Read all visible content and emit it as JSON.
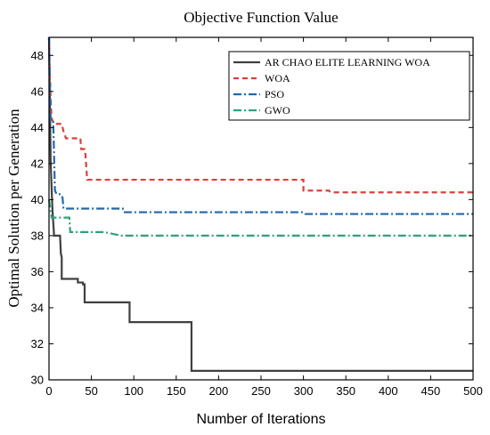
{
  "chart_data": {
    "type": "line",
    "title": "Objective Function Value",
    "xlabel": "Number of Iterations",
    "ylabel": "Optimal Solution per Generation",
    "xlim": [
      0,
      500
    ],
    "ylim": [
      30,
      49
    ],
    "xticks": [
      0,
      50,
      100,
      150,
      200,
      250,
      300,
      350,
      400,
      450,
      500
    ],
    "yticks": [
      30,
      32,
      34,
      36,
      38,
      40,
      42,
      44,
      46,
      48
    ],
    "grid": false,
    "legend_position": "top-right",
    "series": [
      {
        "name": "AR CHAO ELITE LEARNING WOA",
        "color": "#404040",
        "dash": "solid",
        "points": [
          [
            0,
            49
          ],
          [
            2,
            42
          ],
          [
            4,
            39.5
          ],
          [
            6,
            38
          ],
          [
            13,
            38
          ],
          [
            14,
            37
          ],
          [
            15,
            36.8
          ],
          [
            15,
            35.6
          ],
          [
            34,
            35.6
          ],
          [
            34,
            35.4
          ],
          [
            40,
            35.4
          ],
          [
            40,
            35.3
          ],
          [
            42,
            35.3
          ],
          [
            42,
            34.3
          ],
          [
            95,
            34.3
          ],
          [
            95,
            33.2
          ],
          [
            168,
            33.2
          ],
          [
            168,
            30.5
          ],
          [
            500,
            30.5
          ]
        ]
      },
      {
        "name": "WOA",
        "color": "#d9413a",
        "dash": "6,4",
        "points": [
          [
            0,
            49
          ],
          [
            1,
            47
          ],
          [
            2,
            45.5
          ],
          [
            3,
            44.5
          ],
          [
            6,
            44.2
          ],
          [
            15,
            44.2
          ],
          [
            17,
            43.8
          ],
          [
            20,
            43.4
          ],
          [
            37,
            43.4
          ],
          [
            38,
            42.8
          ],
          [
            42,
            42.8
          ],
          [
            43,
            42.5
          ],
          [
            45,
            41.1
          ],
          [
            300,
            41.1
          ],
          [
            300,
            40.5
          ],
          [
            330,
            40.5
          ],
          [
            332,
            40.4
          ],
          [
            500,
            40.4
          ]
        ]
      },
      {
        "name": "PSO",
        "color": "#2166ac",
        "dash": "9,3,2,3",
        "points": [
          [
            0,
            49
          ],
          [
            2,
            44.3
          ],
          [
            5,
            44.3
          ],
          [
            7,
            40.5
          ],
          [
            9,
            40.3
          ],
          [
            14,
            40.3
          ],
          [
            16,
            40.1
          ],
          [
            17,
            39.5
          ],
          [
            87,
            39.5
          ],
          [
            88,
            39.3
          ],
          [
            300,
            39.3
          ],
          [
            302,
            39.2
          ],
          [
            500,
            39.2
          ]
        ]
      },
      {
        "name": "GWO",
        "color": "#2ea27a",
        "dash": "9,3,2,3",
        "points": [
          [
            0,
            40
          ],
          [
            3,
            39
          ],
          [
            24,
            39
          ],
          [
            25,
            38.2
          ],
          [
            65,
            38.2
          ],
          [
            85,
            38.0
          ],
          [
            500,
            38.0
          ]
        ]
      }
    ]
  }
}
